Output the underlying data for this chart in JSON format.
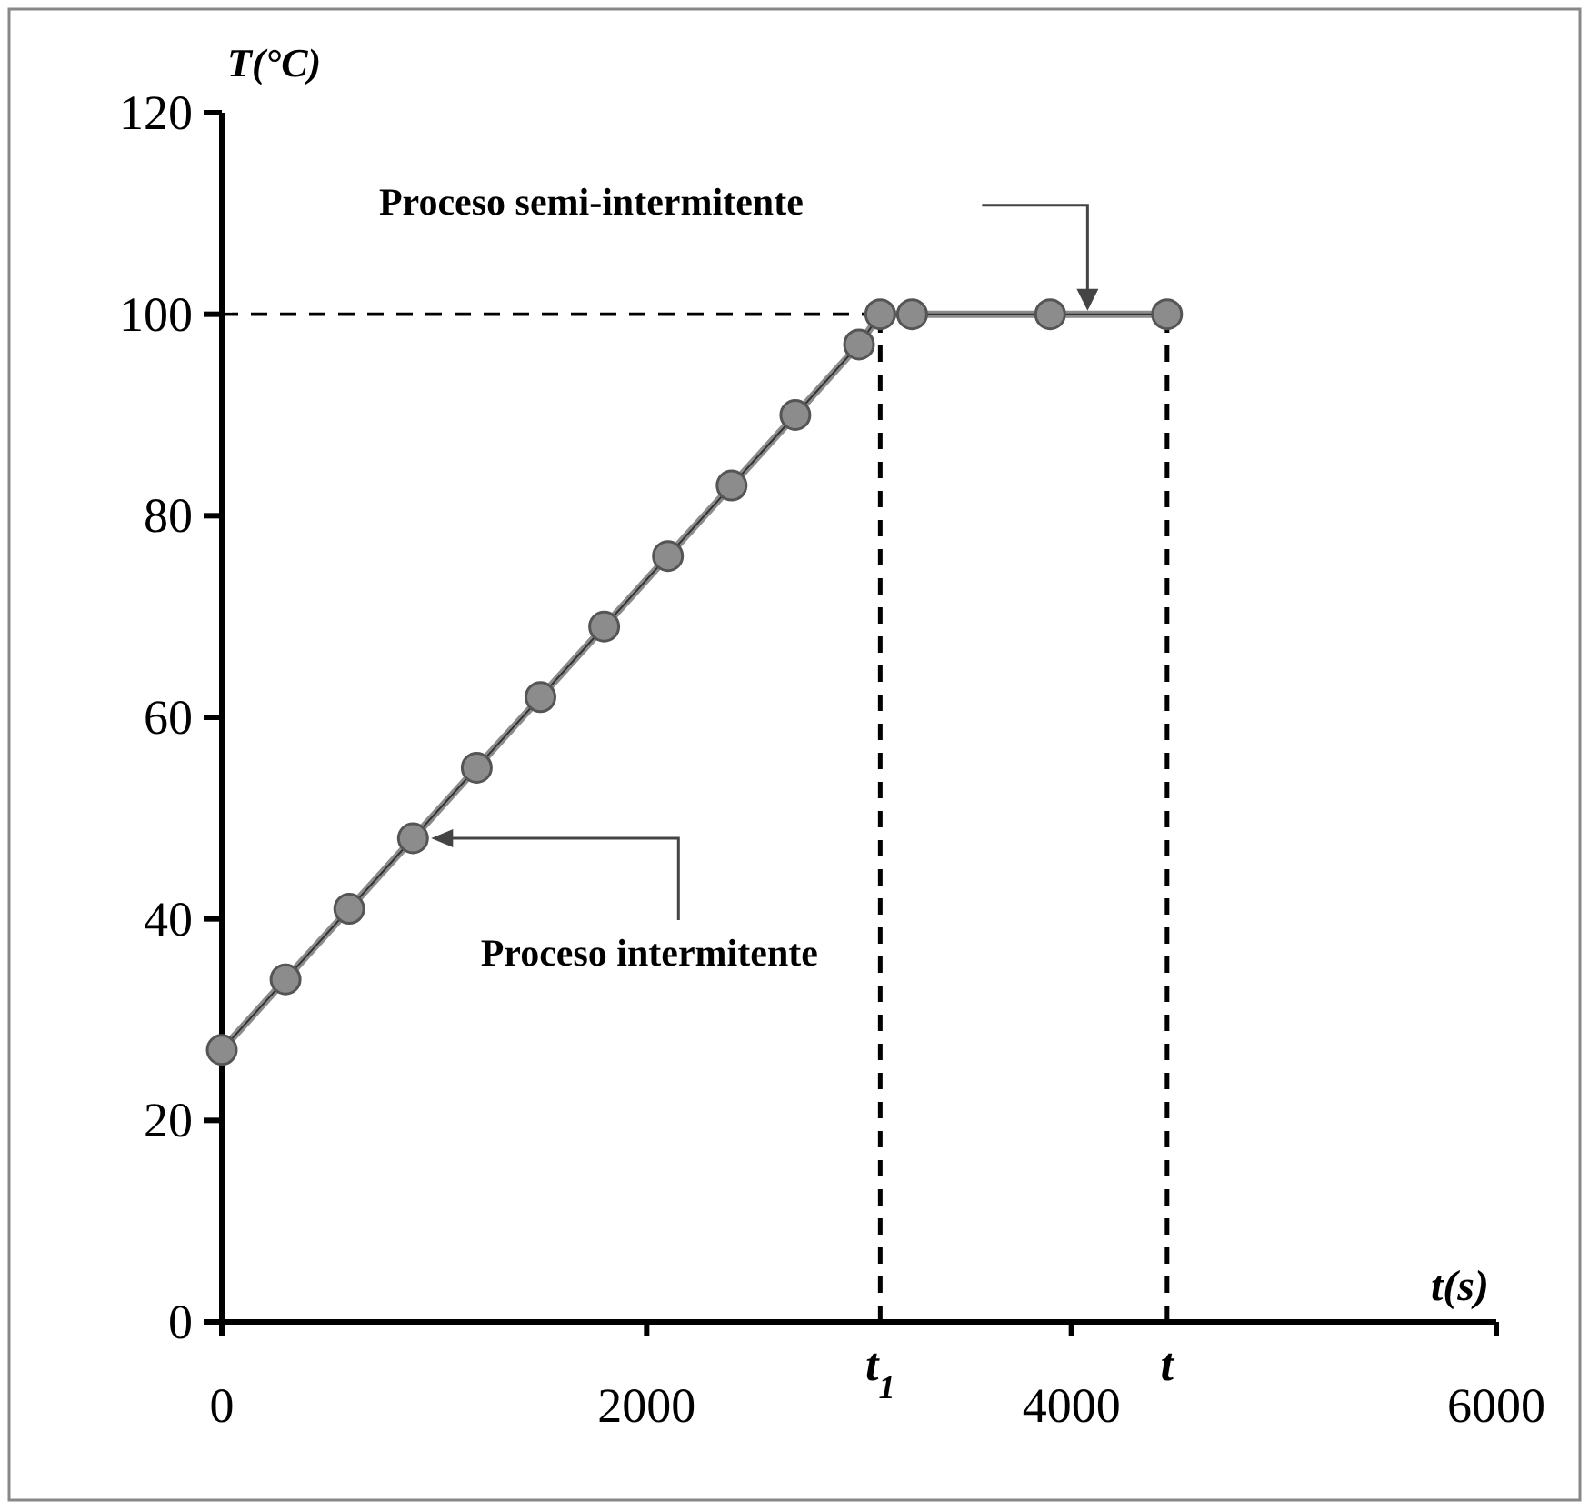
{
  "chart_data": {
    "type": "line",
    "xlabel": "t(s)",
    "ylabel": "T(°C)",
    "x": [
      0,
      300,
      600,
      900,
      1200,
      1500,
      1800,
      2100,
      2400,
      2700,
      3000,
      3100,
      3250,
      3900,
      4450
    ],
    "series": [
      {
        "color": "#8c8c8c",
        "values": [
          27,
          34,
          41,
          48,
          55,
          62,
          69,
          76,
          83,
          90,
          97,
          100,
          100,
          100,
          100
        ]
      }
    ],
    "marker": "circle",
    "line_style": "solid",
    "grid": false,
    "xlim": [
      0,
      6000
    ],
    "xticks": [
      0,
      2000,
      4000,
      6000
    ],
    "ylim": [
      0,
      120
    ],
    "yticks": [
      0,
      20,
      40,
      60,
      80,
      100,
      120
    ],
    "ref_lines": [
      {
        "axis": "y",
        "value": 100,
        "line_style": "dashed",
        "color": "#000000"
      },
      {
        "axis": "x",
        "value": 3100,
        "label": "t$_{1}$",
        "line_style": "dashed",
        "color": "#000000"
      },
      {
        "axis": "x",
        "value": 4450,
        "label": "t",
        "line_style": "dashed",
        "color": "#000000"
      }
    ],
    "annotations": [
      "Proceso semi-intermitente",
      "Proceso intermitente"
    ]
  }
}
